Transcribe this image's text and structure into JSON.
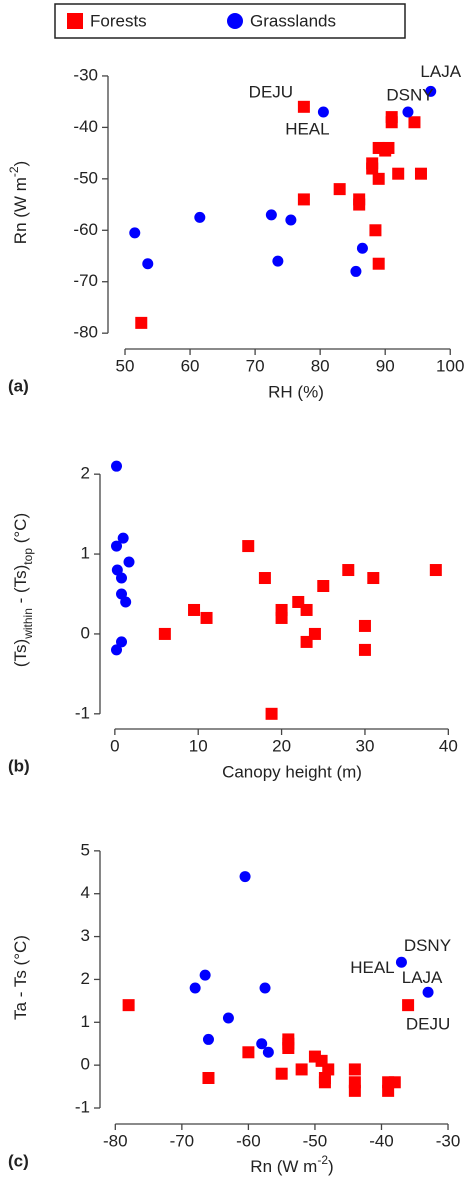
{
  "chart_data": [
    {
      "type": "scatter",
      "panel_label": "(a)",
      "xlabel": "RH (%)",
      "ylabel": [
        "Rn (W m",
        "-2",
        ")"
      ],
      "xlim": [
        48,
        101.5
      ],
      "ylim": [
        -82.3,
        -26.9
      ],
      "xticks": [
        50,
        60,
        70,
        80,
        90,
        100
      ],
      "yticks": [
        -80,
        -70,
        -60,
        -50,
        -40,
        -30
      ],
      "series": [
        {
          "name": "Forests",
          "color": "#ff0000",
          "marker": "square",
          "x": [
            77.5,
            77.5,
            83,
            86,
            86,
            88,
            88,
            88.5,
            89,
            89,
            89,
            90,
            90.5,
            91,
            91,
            92,
            94.5,
            95.5,
            52.5
          ],
          "values": [
            -36,
            -54,
            -52,
            -54,
            -55,
            -47,
            -48,
            -60,
            -44,
            -50,
            -66.5,
            -44.5,
            -44,
            -38,
            -39,
            -49,
            -39,
            -49,
            -78
          ]
        },
        {
          "name": "Grasslands",
          "color": "#0000ff",
          "marker": "circle",
          "x": [
            51.5,
            53.5,
            61.5,
            72.5,
            73.5,
            75.5,
            80.5,
            85.5,
            86.5,
            93.5,
            97
          ],
          "values": [
            -60.5,
            -66.5,
            -57.5,
            -57,
            -66,
            -58,
            -37,
            -68,
            -63.5,
            -37,
            -33
          ]
        }
      ],
      "annotations": [
        {
          "text": "DEJU",
          "x": 77.5,
          "y": -36
        },
        {
          "text": "HEAL",
          "x": 80.5,
          "y": -37
        },
        {
          "text": "DSNY",
          "x": 93.5,
          "y": -37
        },
        {
          "text": "LAJA",
          "x": 97,
          "y": -33
        }
      ]
    },
    {
      "type": "scatter",
      "panel_label": "(b)",
      "xlabel": "Canopy height (m)",
      "ylabel": [
        "(Ts)",
        "within",
        " - (Ts)",
        "top",
        "  (°C)"
      ],
      "xlim": [
        -1.3,
        41.4
      ],
      "ylim": [
        -1.14,
        2.24
      ],
      "xticks": [
        0,
        10,
        20,
        30,
        40
      ],
      "yticks": [
        -1,
        0,
        1,
        2
      ],
      "series": [
        {
          "name": "Forests",
          "color": "#ff0000",
          "marker": "square",
          "x": [
            6,
            9.5,
            11,
            16,
            18,
            18.8,
            20,
            20,
            22,
            23,
            23,
            24,
            25,
            28,
            30,
            30,
            31,
            38.5
          ],
          "values": [
            0,
            0.3,
            0.2,
            1.1,
            0.7,
            -1,
            0.3,
            0.2,
            0.4,
            0.3,
            -0.1,
            0,
            0.6,
            0.8,
            0.1,
            -0.2,
            0.7,
            0.8
          ]
        },
        {
          "name": "Grasslands",
          "color": "#0000ff",
          "marker": "circle",
          "x": [
            0.2,
            0.2,
            1,
            0.3,
            1.7,
            0.8,
            1.3,
            0.8,
            0.8,
            0.2
          ],
          "values": [
            2.1,
            1.1,
            1.2,
            0.8,
            0.9,
            0.7,
            0.4,
            0.5,
            -0.1,
            -0.2
          ]
        }
      ],
      "annotations": []
    },
    {
      "type": "scatter",
      "panel_label": "(c)",
      "xlabel": [
        "Rn (W m",
        "-2",
        ")"
      ],
      "ylabel": [
        "Ta - Ts  (°C)"
      ],
      "xlim": [
        -81.7,
        -28.2
      ],
      "ylim": [
        -1.28,
        5.37
      ],
      "xticks": [
        -80,
        -70,
        -60,
        -50,
        -40,
        -30
      ],
      "yticks": [
        -1,
        0,
        1,
        2,
        3,
        4,
        5
      ],
      "series": [
        {
          "name": "Forests",
          "color": "#ff0000",
          "marker": "square",
          "x": [
            -78,
            -60,
            -66,
            -55,
            -54,
            -54,
            -54,
            -52,
            -50,
            -49,
            -48.5,
            -48.5,
            -48,
            -44,
            -44,
            -44,
            -39,
            -39,
            -38,
            -36
          ],
          "values": [
            1.4,
            0.3,
            -0.3,
            -0.2,
            0.6,
            0.5,
            0.4,
            -0.1,
            0.2,
            0.1,
            -0.3,
            -0.4,
            -0.1,
            -0.1,
            -0.4,
            -0.6,
            -0.4,
            -0.6,
            -0.4,
            1.4
          ]
        },
        {
          "name": "Grasslands",
          "color": "#0000ff",
          "marker": "circle",
          "x": [
            -68,
            -66.5,
            -66,
            -63,
            -60.5,
            -58,
            -57.5,
            -57,
            -37,
            -33
          ],
          "values": [
            1.8,
            2.1,
            0.6,
            1.1,
            4.4,
            0.5,
            1.8,
            0.3,
            2.4,
            1.7
          ]
        }
      ],
      "annotations": [
        {
          "text": "DSNY",
          "x": -37,
          "y": 2.4
        },
        {
          "text": "HEAL",
          "x": -37,
          "y": 2.4
        },
        {
          "text": "LAJA",
          "x": -33,
          "y": 1.7
        },
        {
          "text": "DEJU",
          "x": -36,
          "y": 1.4
        }
      ]
    }
  ]
}
